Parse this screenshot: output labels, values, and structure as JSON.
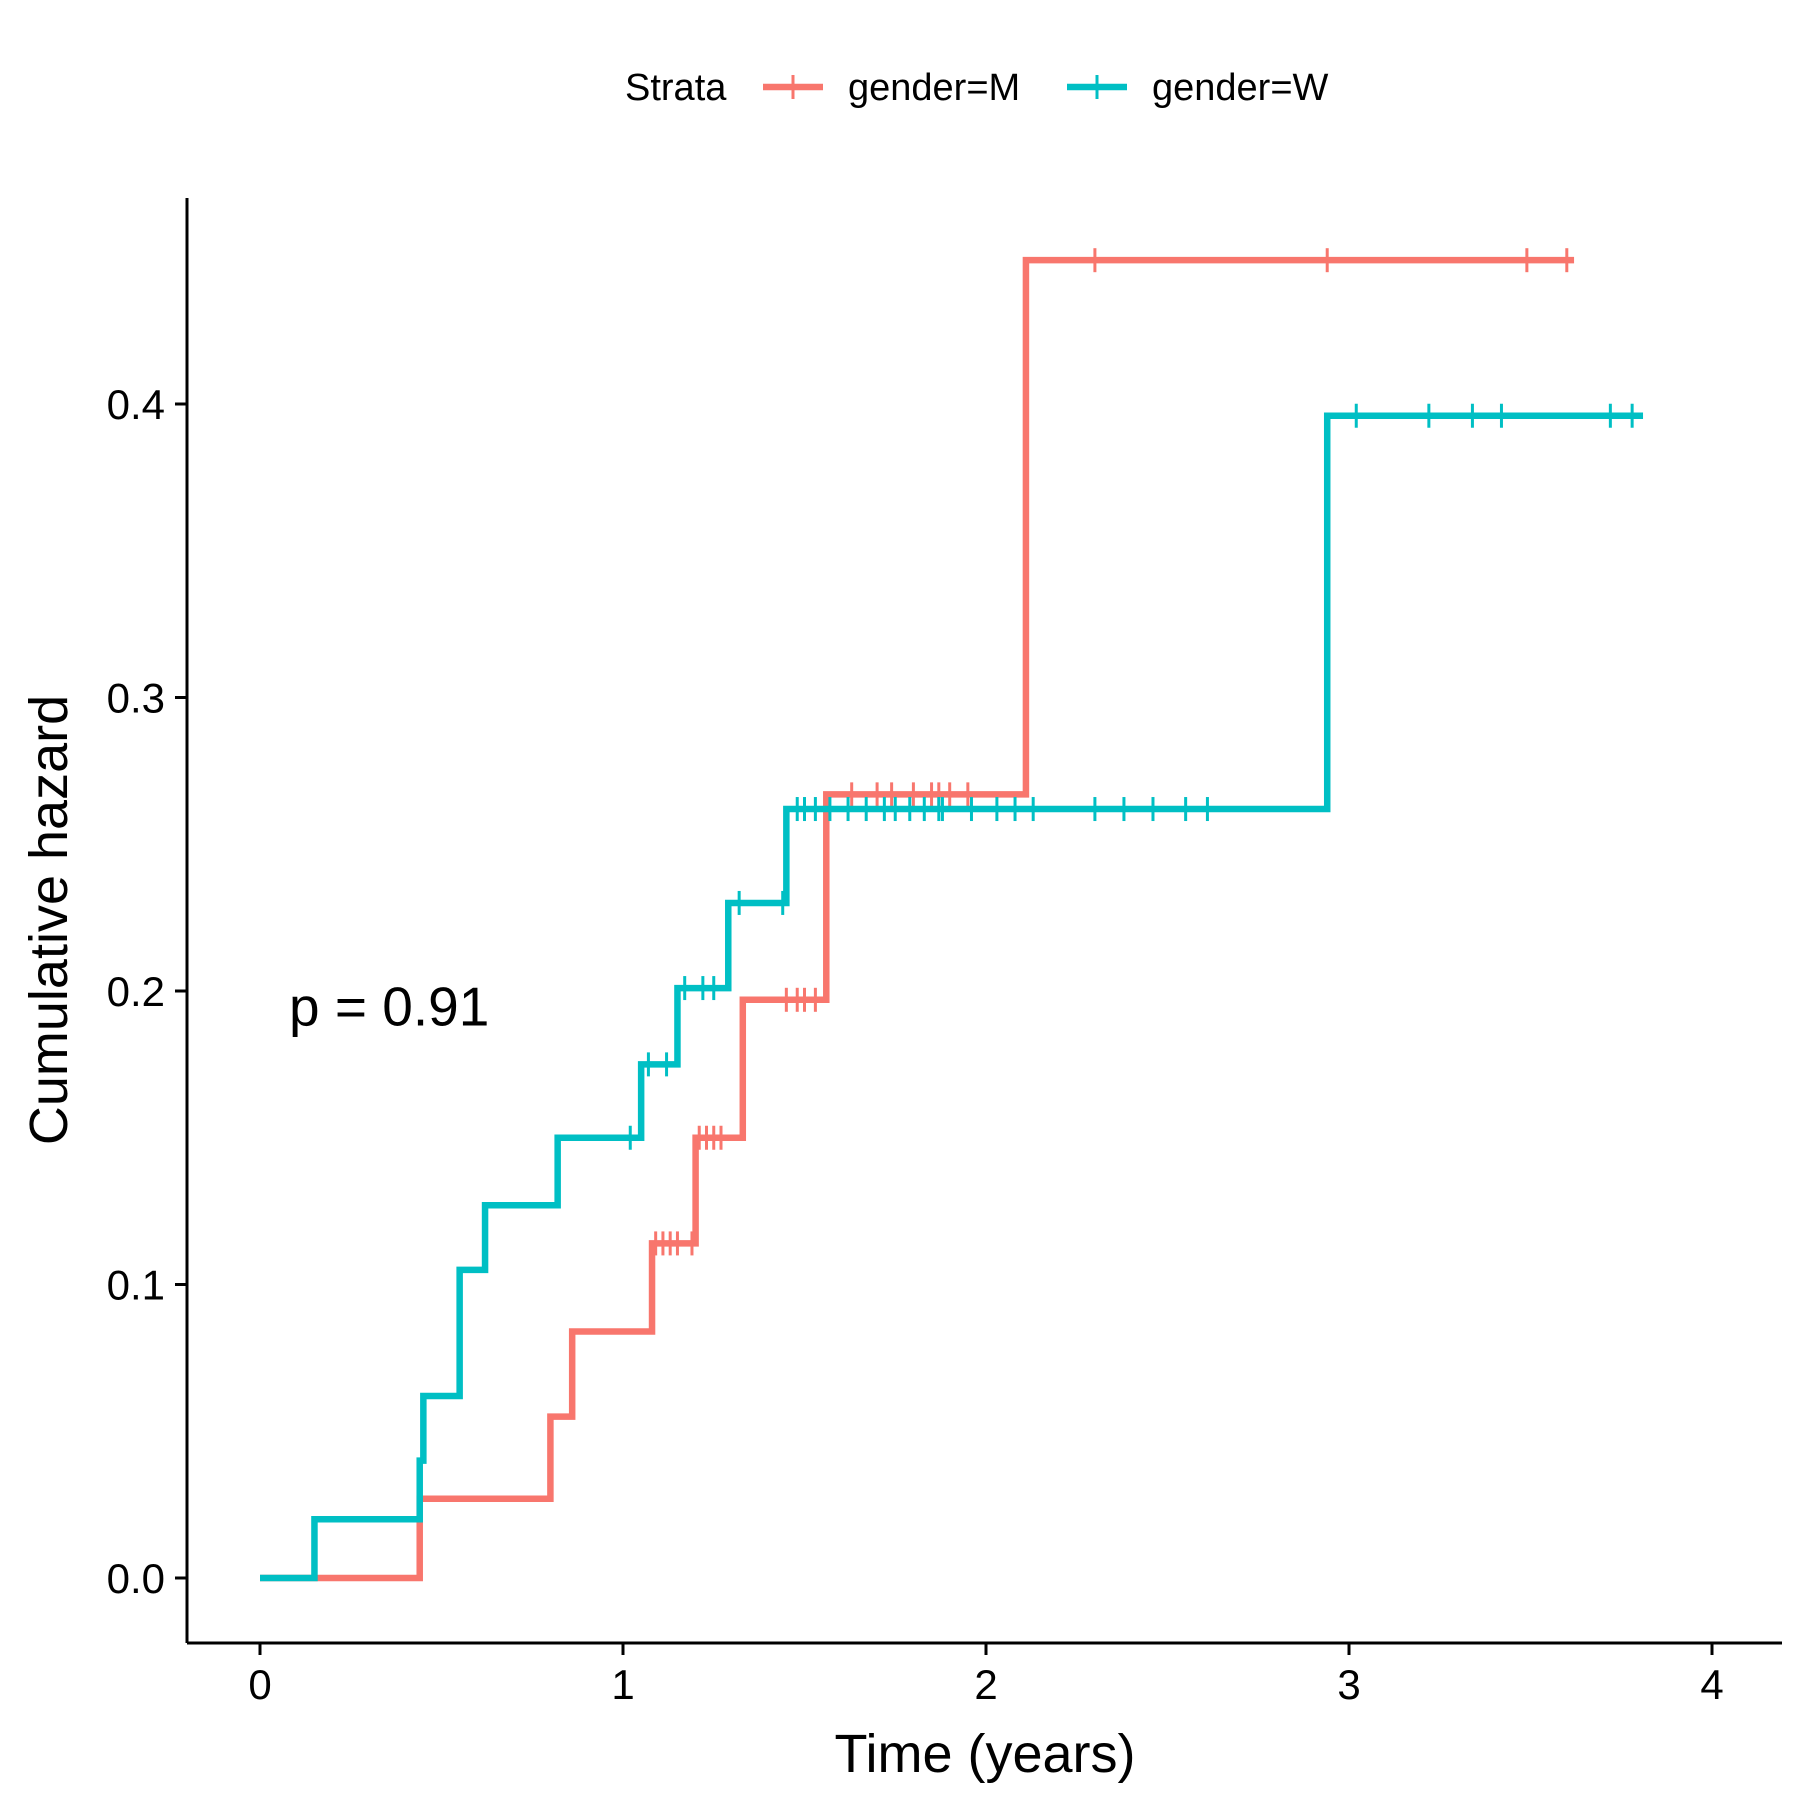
{
  "chart_data": {
    "type": "line",
    "step": true,
    "xlabel": "Time (years)",
    "ylabel": "Cumulative hazard",
    "xlim": [
      -0.2,
      4.2
    ],
    "ylim": [
      -0.022,
      0.47
    ],
    "xticks": [
      0,
      1,
      2,
      3,
      4
    ],
    "xtick_labels": [
      "0",
      "1",
      "2",
      "3",
      "4"
    ],
    "yticks": [
      0.0,
      0.1,
      0.2,
      0.3,
      0.4
    ],
    "ytick_labels": [
      "0.0",
      "0.1",
      "0.2",
      "0.3",
      "0.4"
    ],
    "grid": false,
    "legend": {
      "title": "Strata",
      "position": "top",
      "entries": [
        "gender=M",
        "gender=W"
      ]
    },
    "annotation": {
      "text": "p = 0.91",
      "x": 0.08,
      "y": 0.195
    },
    "series": [
      {
        "name": "gender=M",
        "color": "#F8766D",
        "steps": [
          [
            0,
            0.0
          ],
          [
            0.44,
            0.027
          ],
          [
            0.8,
            0.055
          ],
          [
            0.86,
            0.084
          ],
          [
            1.08,
            0.114
          ],
          [
            1.2,
            0.15
          ],
          [
            1.33,
            0.197
          ],
          [
            1.56,
            0.267
          ],
          [
            2.11,
            0.449
          ]
        ],
        "end": 3.62,
        "censored": [
          [
            1.09,
            0.114
          ],
          [
            1.11,
            0.114
          ],
          [
            1.13,
            0.114
          ],
          [
            1.15,
            0.114
          ],
          [
            1.19,
            0.114
          ],
          [
            1.21,
            0.15
          ],
          [
            1.23,
            0.15
          ],
          [
            1.25,
            0.15
          ],
          [
            1.27,
            0.15
          ],
          [
            1.45,
            0.197
          ],
          [
            1.48,
            0.197
          ],
          [
            1.5,
            0.197
          ],
          [
            1.53,
            0.197
          ],
          [
            1.63,
            0.267
          ],
          [
            1.7,
            0.267
          ],
          [
            1.74,
            0.267
          ],
          [
            1.8,
            0.267
          ],
          [
            1.85,
            0.267
          ],
          [
            1.87,
            0.267
          ],
          [
            1.9,
            0.267
          ],
          [
            1.95,
            0.267
          ],
          [
            2.3,
            0.449
          ],
          [
            2.94,
            0.449
          ],
          [
            3.49,
            0.449
          ],
          [
            3.6,
            0.449
          ]
        ]
      },
      {
        "name": "gender=W",
        "color": "#00BFC4",
        "steps": [
          [
            0,
            0.0
          ],
          [
            0.15,
            0.02
          ],
          [
            0.44,
            0.04
          ],
          [
            0.45,
            0.062
          ],
          [
            0.55,
            0.105
          ],
          [
            0.62,
            0.127
          ],
          [
            0.82,
            0.15
          ],
          [
            1.05,
            0.175
          ],
          [
            1.15,
            0.201
          ],
          [
            1.29,
            0.23
          ],
          [
            1.45,
            0.262
          ],
          [
            2.94,
            0.396
          ]
        ],
        "end": 3.81,
        "censored": [
          [
            1.02,
            0.15
          ],
          [
            1.07,
            0.175
          ],
          [
            1.12,
            0.175
          ],
          [
            1.17,
            0.201
          ],
          [
            1.22,
            0.201
          ],
          [
            1.25,
            0.201
          ],
          [
            1.32,
            0.23
          ],
          [
            1.44,
            0.23
          ],
          [
            1.48,
            0.262
          ],
          [
            1.5,
            0.262
          ],
          [
            1.53,
            0.262
          ],
          [
            1.57,
            0.262
          ],
          [
            1.62,
            0.262
          ],
          [
            1.67,
            0.262
          ],
          [
            1.72,
            0.262
          ],
          [
            1.75,
            0.262
          ],
          [
            1.79,
            0.262
          ],
          [
            1.83,
            0.262
          ],
          [
            1.87,
            0.262
          ],
          [
            1.88,
            0.262
          ],
          [
            1.96,
            0.262
          ],
          [
            2.03,
            0.262
          ],
          [
            2.08,
            0.262
          ],
          [
            2.13,
            0.262
          ],
          [
            2.3,
            0.262
          ],
          [
            2.38,
            0.262
          ],
          [
            2.46,
            0.262
          ],
          [
            2.55,
            0.262
          ],
          [
            2.61,
            0.262
          ],
          [
            3.02,
            0.396
          ],
          [
            3.22,
            0.396
          ],
          [
            3.34,
            0.396
          ],
          [
            3.42,
            0.396
          ],
          [
            3.72,
            0.396
          ],
          [
            3.78,
            0.396
          ]
        ]
      }
    ]
  }
}
